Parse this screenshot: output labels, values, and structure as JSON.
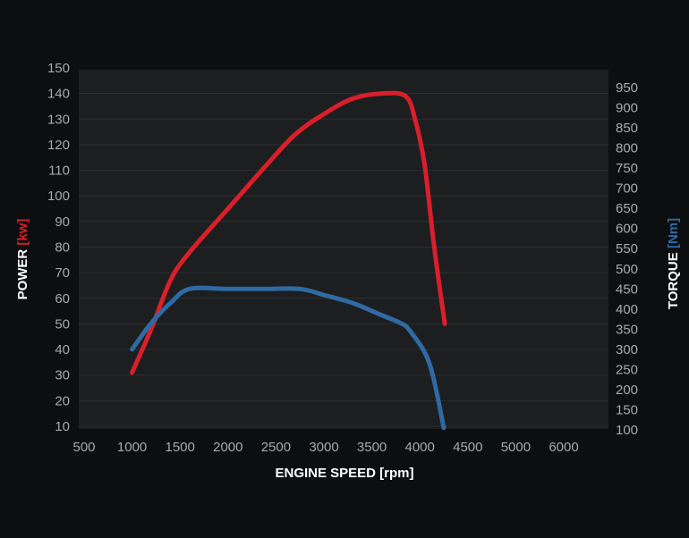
{
  "chart_data": {
    "type": "line",
    "grid": true,
    "x_axis": {
      "label": "ENGINE SPEED [rpm]",
      "range": [
        500,
        6000
      ],
      "ticks": [
        "500",
        "1000",
        "1500",
        "2000",
        "2500",
        "3000",
        "3500",
        "4000",
        "4500",
        "5000",
        "6000"
      ]
    },
    "y_left": {
      "label_main": "POWER",
      "label_unit": "[kw]",
      "range": [
        10,
        150
      ],
      "ticks": [
        "10",
        "20",
        "30",
        "40",
        "50",
        "60",
        "70",
        "80",
        "90",
        "100",
        "110",
        "120",
        "130",
        "140",
        "150"
      ]
    },
    "y_right": {
      "label_main": "TORQUE",
      "label_unit": "[Nm]",
      "range": [
        100,
        950
      ],
      "ticks": [
        "100",
        "150",
        "200",
        "250",
        "300",
        "350",
        "400",
        "450",
        "500",
        "550",
        "600",
        "650",
        "700",
        "750",
        "800",
        "850",
        "900",
        "950"
      ]
    },
    "series": [
      {
        "axis": "left",
        "color": "#d81f2a",
        "points": [
          [
            1000,
            31
          ],
          [
            1200,
            48
          ],
          [
            1400,
            67
          ],
          [
            1600,
            78
          ],
          [
            2000,
            95
          ],
          [
            2400,
            112
          ],
          [
            2700,
            124
          ],
          [
            3000,
            132
          ],
          [
            3300,
            138
          ],
          [
            3600,
            140
          ],
          [
            3850,
            139
          ],
          [
            3950,
            130
          ],
          [
            4050,
            112
          ],
          [
            4150,
            80
          ],
          [
            4260,
            50
          ]
        ]
      },
      {
        "axis": "right",
        "color": "#2f6aa3",
        "points": [
          [
            1000,
            300
          ],
          [
            1200,
            365
          ],
          [
            1400,
            415
          ],
          [
            1600,
            450
          ],
          [
            2000,
            450
          ],
          [
            2400,
            450
          ],
          [
            2750,
            450
          ],
          [
            3000,
            435
          ],
          [
            3300,
            415
          ],
          [
            3600,
            385
          ],
          [
            3800,
            365
          ],
          [
            3900,
            345
          ],
          [
            4100,
            265
          ],
          [
            4250,
            105
          ]
        ]
      }
    ],
    "colors": {
      "power_accent": "#d81f2a",
      "torque_accent": "#2f6aa3"
    }
  }
}
